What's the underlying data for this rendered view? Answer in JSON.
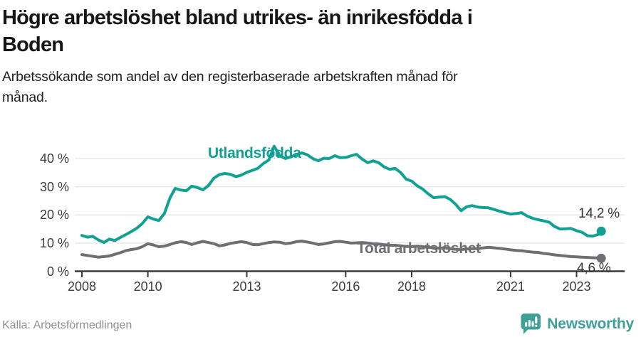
{
  "header": {
    "title_line1": "Högre arbetslöshet bland utrikes- än inrikesfödda i",
    "title_line2": "Boden",
    "subtitle_line1": "Arbetssökande som andel av den registerbaserade arbetskraften månad för",
    "subtitle_line2": "månad."
  },
  "footer": {
    "source": "Källa: Arbetsförmedlingen",
    "logo_text": "Newsworthy"
  },
  "colors": {
    "accent_teal": "#11a094",
    "series_gray": "#6f6f73",
    "grid": "#e3e3e3",
    "axis": "#3a3a3a",
    "value_label": "#333333",
    "logo_teal": "#3f9f99",
    "title_text": "#161616",
    "source_text": "#8e8e8e"
  },
  "chart_data": {
    "type": "line",
    "x_unit": "decimal_year",
    "y_unit": "percent_of_labour_force",
    "xlim": [
      2007.8,
      2024.2
    ],
    "ylim": [
      0,
      45
    ],
    "grid": "horizontal",
    "legend_position": "inline-labels",
    "x_ticks": [
      2008,
      2010,
      2013,
      2016,
      2018,
      2021,
      2023
    ],
    "x_tick_labels": [
      "2008",
      "2010",
      "2013",
      "2016",
      "2018",
      "2021",
      "2023"
    ],
    "y_ticks": [
      0,
      10,
      20,
      30,
      40
    ],
    "y_tick_labels": [
      "0 %",
      "10 %",
      "20 %",
      "30 %",
      "40 %"
    ],
    "series": [
      {
        "name": "Utlandsfödda",
        "color": "#11a094",
        "end_value": 14.2,
        "end_label": "14,2 %",
        "points": [
          [
            2008,
            12.7
          ],
          [
            2008.17,
            12.1
          ],
          [
            2008.33,
            12.4
          ],
          [
            2008.5,
            11.1
          ],
          [
            2008.67,
            10.2
          ],
          [
            2008.83,
            11.4
          ],
          [
            2009,
            10.9
          ],
          [
            2009.17,
            12
          ],
          [
            2009.33,
            13
          ],
          [
            2009.5,
            14.1
          ],
          [
            2009.67,
            15.3
          ],
          [
            2009.83,
            16.9
          ],
          [
            2010,
            19.3
          ],
          [
            2010.17,
            18.5
          ],
          [
            2010.33,
            18
          ],
          [
            2010.5,
            20.5
          ],
          [
            2010.67,
            26
          ],
          [
            2010.83,
            29.4
          ],
          [
            2011,
            28.8
          ],
          [
            2011.17,
            28.6
          ],
          [
            2011.33,
            30.2
          ],
          [
            2011.5,
            29.7
          ],
          [
            2011.67,
            28.9
          ],
          [
            2011.83,
            30.3
          ],
          [
            2012,
            33
          ],
          [
            2012.17,
            34.3
          ],
          [
            2012.33,
            34.7
          ],
          [
            2012.5,
            34.4
          ],
          [
            2012.67,
            33.6
          ],
          [
            2012.83,
            34.1
          ],
          [
            2013,
            35.1
          ],
          [
            2013.17,
            35.8
          ],
          [
            2013.33,
            36.5
          ],
          [
            2013.5,
            38.2
          ],
          [
            2013.67,
            39.5
          ],
          [
            2013.83,
            44.4
          ],
          [
            2014,
            41
          ],
          [
            2014.17,
            40
          ],
          [
            2014.33,
            40.6
          ],
          [
            2014.5,
            41.4
          ],
          [
            2014.67,
            42
          ],
          [
            2014.83,
            41.4
          ],
          [
            2015,
            40
          ],
          [
            2015.17,
            39.2
          ],
          [
            2015.33,
            40.1
          ],
          [
            2015.5,
            40
          ],
          [
            2015.67,
            41
          ],
          [
            2015.83,
            40.3
          ],
          [
            2016,
            40.4
          ],
          [
            2016.17,
            41
          ],
          [
            2016.33,
            41.5
          ],
          [
            2016.5,
            39.8
          ],
          [
            2016.67,
            38.5
          ],
          [
            2016.83,
            39.2
          ],
          [
            2017,
            38.5
          ],
          [
            2017.17,
            37
          ],
          [
            2017.33,
            36.2
          ],
          [
            2017.5,
            36.5
          ],
          [
            2017.67,
            35
          ],
          [
            2017.83,
            32.7
          ],
          [
            2018,
            32
          ],
          [
            2018.17,
            30.3
          ],
          [
            2018.33,
            29.2
          ],
          [
            2018.5,
            27.5
          ],
          [
            2018.67,
            26.1
          ],
          [
            2018.83,
            26.3
          ],
          [
            2019,
            26.5
          ],
          [
            2019.17,
            25.5
          ],
          [
            2019.33,
            23.8
          ],
          [
            2019.5,
            21.5
          ],
          [
            2019.67,
            22.9
          ],
          [
            2019.83,
            23.3
          ],
          [
            2020,
            22.8
          ],
          [
            2020.17,
            22.6
          ],
          [
            2020.33,
            22.5
          ],
          [
            2020.5,
            21.9
          ],
          [
            2020.67,
            21.3
          ],
          [
            2020.83,
            20.8
          ],
          [
            2021,
            20.3
          ],
          [
            2021.17,
            20.5
          ],
          [
            2021.33,
            20.8
          ],
          [
            2021.5,
            19.6
          ],
          [
            2021.67,
            18.8
          ],
          [
            2021.83,
            18.3
          ],
          [
            2022,
            17.9
          ],
          [
            2022.17,
            17.4
          ],
          [
            2022.33,
            15.9
          ],
          [
            2022.5,
            15
          ],
          [
            2022.67,
            15.1
          ],
          [
            2022.83,
            15.2
          ],
          [
            2023,
            14.4
          ],
          [
            2023.17,
            13.8
          ],
          [
            2023.33,
            12.6
          ],
          [
            2023.5,
            12.5
          ],
          [
            2023.67,
            13.1
          ],
          [
            2023.75,
            14.2
          ]
        ]
      },
      {
        "name": "Total arbetslöshet",
        "color": "#6f6f73",
        "end_value": 4.6,
        "end_label": "4,6 %",
        "points": [
          [
            2008,
            5.9
          ],
          [
            2008.17,
            5.6
          ],
          [
            2008.33,
            5.3
          ],
          [
            2008.5,
            5
          ],
          [
            2008.67,
            5.2
          ],
          [
            2008.83,
            5.4
          ],
          [
            2009,
            6
          ],
          [
            2009.17,
            6.6
          ],
          [
            2009.33,
            7.3
          ],
          [
            2009.5,
            7.7
          ],
          [
            2009.67,
            8
          ],
          [
            2009.83,
            8.7
          ],
          [
            2010,
            9.8
          ],
          [
            2010.17,
            9.3
          ],
          [
            2010.33,
            8.7
          ],
          [
            2010.5,
            8.9
          ],
          [
            2010.67,
            9.5
          ],
          [
            2010.83,
            10.1
          ],
          [
            2011,
            10.5
          ],
          [
            2011.17,
            10.2
          ],
          [
            2011.33,
            9.5
          ],
          [
            2011.5,
            10.1
          ],
          [
            2011.67,
            10.6
          ],
          [
            2011.83,
            10.2
          ],
          [
            2012,
            9.8
          ],
          [
            2012.17,
            9
          ],
          [
            2012.33,
            9.3
          ],
          [
            2012.5,
            9.9
          ],
          [
            2012.67,
            10.2
          ],
          [
            2012.83,
            10.5
          ],
          [
            2013,
            10.2
          ],
          [
            2013.17,
            9.5
          ],
          [
            2013.33,
            9.4
          ],
          [
            2013.5,
            9.8
          ],
          [
            2013.67,
            10.2
          ],
          [
            2013.83,
            10.4
          ],
          [
            2014,
            10.3
          ],
          [
            2014.17,
            9.8
          ],
          [
            2014.33,
            10
          ],
          [
            2014.5,
            10.5
          ],
          [
            2014.67,
            10.7
          ],
          [
            2014.83,
            10.4
          ],
          [
            2015,
            10
          ],
          [
            2015.17,
            9.5
          ],
          [
            2015.33,
            9.7
          ],
          [
            2015.5,
            10.1
          ],
          [
            2015.67,
            10.5
          ],
          [
            2015.83,
            10.6
          ],
          [
            2016,
            10.3
          ],
          [
            2016.17,
            10
          ],
          [
            2016.33,
            10.1
          ],
          [
            2016.5,
            10.2
          ],
          [
            2016.67,
            10
          ],
          [
            2016.83,
            9.8
          ],
          [
            2017,
            9.7
          ],
          [
            2017.17,
            9.4
          ],
          [
            2017.33,
            9.2
          ],
          [
            2017.5,
            9.2
          ],
          [
            2017.67,
            9
          ],
          [
            2017.83,
            8.8
          ],
          [
            2018,
            8.7
          ],
          [
            2018.17,
            8.9
          ],
          [
            2018.33,
            8.7
          ],
          [
            2018.5,
            8.5
          ],
          [
            2018.67,
            8.3
          ],
          [
            2018.83,
            8.2
          ],
          [
            2019,
            8.3
          ],
          [
            2019.17,
            8
          ],
          [
            2019.33,
            7.8
          ],
          [
            2019.5,
            7.7
          ],
          [
            2019.67,
            7.9
          ],
          [
            2019.83,
            8
          ],
          [
            2020,
            8
          ],
          [
            2020.17,
            8.3
          ],
          [
            2020.33,
            8.5
          ],
          [
            2020.5,
            8.3
          ],
          [
            2020.67,
            8.1
          ],
          [
            2020.83,
            7.9
          ],
          [
            2021,
            7.6
          ],
          [
            2021.17,
            7.4
          ],
          [
            2021.33,
            7.3
          ],
          [
            2021.5,
            7
          ],
          [
            2021.67,
            6.8
          ],
          [
            2021.83,
            6.7
          ],
          [
            2022,
            6.3
          ],
          [
            2022.17,
            6.1
          ],
          [
            2022.33,
            5.8
          ],
          [
            2022.5,
            5.6
          ],
          [
            2022.67,
            5.4
          ],
          [
            2022.83,
            5.2
          ],
          [
            2023,
            5.1
          ],
          [
            2023.17,
            5
          ],
          [
            2023.33,
            4.9
          ],
          [
            2023.5,
            4.8
          ],
          [
            2023.67,
            4.7
          ],
          [
            2023.75,
            4.6
          ]
        ]
      }
    ]
  }
}
